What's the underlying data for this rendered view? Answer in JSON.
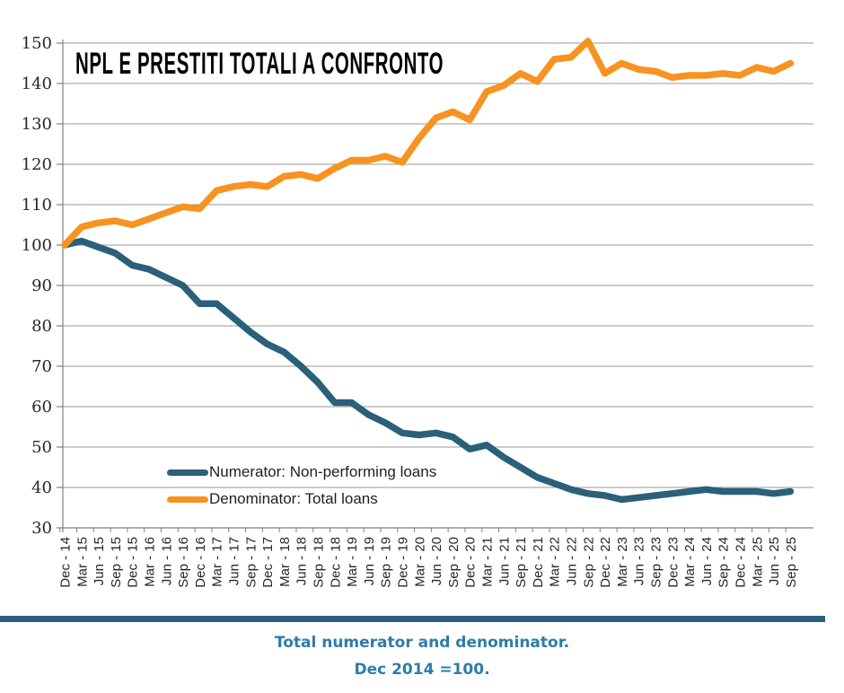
{
  "title": "NPL E PRESTITI TOTALI A CONFRONTO",
  "legend": [
    {
      "label": "Numerator: Non-performing loans",
      "color": "#2A607A"
    },
    {
      "label": "Denominator: Total loans",
      "color": "#F79321"
    }
  ],
  "caption": {
    "line1": "Total numerator and denominator.",
    "line2": "Dec 2014 =100."
  },
  "colors": {
    "npl_line": "#2A607A",
    "total_loans_line": "#F79321",
    "gridline": "#9A9A9A",
    "axis": "#808080",
    "axis_label": "#262626",
    "separator_bar": "#2B5F7E",
    "caption_text": "#2E7CA8",
    "background": "#ffffff"
  },
  "chart_data": {
    "type": "line",
    "title": "NPL E PRESTITI TOTALI A CONFRONTO",
    "xlabel": "",
    "ylabel": "",
    "ylim": [
      30,
      150
    ],
    "ytick_step": 10,
    "grid": true,
    "legend_position": "inside-lower-left",
    "categories": [
      "Dec - 14",
      "Mar - 15",
      "Jun - 15",
      "Sep - 15",
      "Dec - 15",
      "Mar - 16",
      "Jun - 16",
      "Sep - 16",
      "Dec - 16",
      "Mar - 17",
      "Jun - 17",
      "Sep - 17",
      "Dec - 17",
      "Mar - 18",
      "Jun - 18",
      "Sep - 18",
      "Dec - 18",
      "Mar - 19",
      "Jun - 19",
      "Sep - 19",
      "Dec - 19",
      "Mar - 20",
      "Jun - 20",
      "Sep - 20",
      "Dec - 20",
      "Mar - 21",
      "Jun - 21",
      "Sep - 21",
      "Dec - 21",
      "Mar - 22",
      "Jun - 22",
      "Sep - 22",
      "Dec - 22",
      "Mar - 23",
      "Jun - 23",
      "Sep - 23",
      "Dec - 23",
      "Mar - 24",
      "Jun - 24",
      "Sep - 24",
      "Dec - 24",
      "Mar - 25",
      "Jun - 25",
      "Sep - 25"
    ],
    "series": [
      {
        "name": "Numerator: Non-performing loans",
        "color": "#2A607A",
        "values": [
          100,
          101,
          99.5,
          98,
          95,
          94,
          92,
          90,
          85.5,
          85.5,
          82,
          78.5,
          75.5,
          73.5,
          70,
          66,
          61,
          61,
          58,
          56,
          53.5,
          53,
          53.5,
          52.5,
          49.5,
          50.5,
          47.5,
          45,
          42.5,
          41,
          39.5,
          38.5,
          38,
          37,
          37.5,
          38,
          38.5,
          39,
          39.5,
          39,
          39,
          39,
          38.5,
          39
        ]
      },
      {
        "name": "Denominator: Total loans",
        "color": "#F79321",
        "values": [
          100,
          104.5,
          105.5,
          106,
          105,
          106.5,
          108,
          109.5,
          109,
          113.5,
          114.5,
          115,
          114.5,
          117,
          117.5,
          116.5,
          119,
          121,
          121,
          122,
          120.5,
          126.5,
          131.5,
          133,
          131,
          138,
          139.5,
          142.5,
          140.5,
          146,
          146.5,
          150.5,
          142.5,
          145,
          143.5,
          143,
          141.5,
          142,
          142,
          142.5,
          142,
          144,
          143,
          145
        ]
      }
    ]
  }
}
